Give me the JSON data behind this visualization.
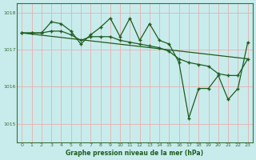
{
  "title": "Graphe pression niveau de la mer (hPa)",
  "bg_color": "#c8ecec",
  "plot_bg_color": "#c8ecec",
  "grid_color": "#e8b0b0",
  "line_color": "#1e5c1e",
  "border_color": "#3a6e3a",
  "xlim": [
    -0.5,
    23.5
  ],
  "ylim": [
    1014.5,
    1018.25
  ],
  "yticks": [
    1015,
    1016,
    1017,
    1018
  ],
  "xticks": [
    0,
    1,
    2,
    3,
    4,
    5,
    6,
    7,
    8,
    9,
    10,
    11,
    12,
    13,
    14,
    15,
    16,
    17,
    18,
    19,
    20,
    21,
    22,
    23
  ],
  "line1_x": [
    0,
    1,
    2,
    3,
    4,
    5,
    6,
    7,
    8,
    9,
    10,
    11,
    12,
    13,
    14,
    15,
    16,
    17,
    18,
    19,
    20,
    21,
    22,
    23
  ],
  "line1_y": [
    1017.45,
    1017.45,
    1017.45,
    1017.5,
    1017.5,
    1017.4,
    1017.25,
    1017.35,
    1017.35,
    1017.35,
    1017.25,
    1017.2,
    1017.15,
    1017.1,
    1017.05,
    1016.95,
    1016.75,
    1016.65,
    1016.6,
    1016.55,
    1016.35,
    1016.3,
    1016.3,
    1016.75
  ],
  "line2_x": [
    0,
    1,
    2,
    3,
    4,
    5,
    6,
    7,
    8,
    9,
    10,
    11,
    12,
    13,
    14,
    15,
    16,
    17,
    18,
    19,
    20,
    21,
    22,
    23
  ],
  "line2_y": [
    1017.45,
    1017.45,
    1017.45,
    1017.75,
    1017.7,
    1017.5,
    1017.15,
    1017.4,
    1017.6,
    1017.85,
    1017.35,
    1017.85,
    1017.25,
    1017.7,
    1017.25,
    1017.15,
    1016.65,
    1015.15,
    1015.95,
    1015.95,
    1016.3,
    1015.65,
    1015.95,
    1017.2
  ],
  "line3_x": [
    0,
    23
  ],
  "line3_y": [
    1017.45,
    1016.75
  ]
}
